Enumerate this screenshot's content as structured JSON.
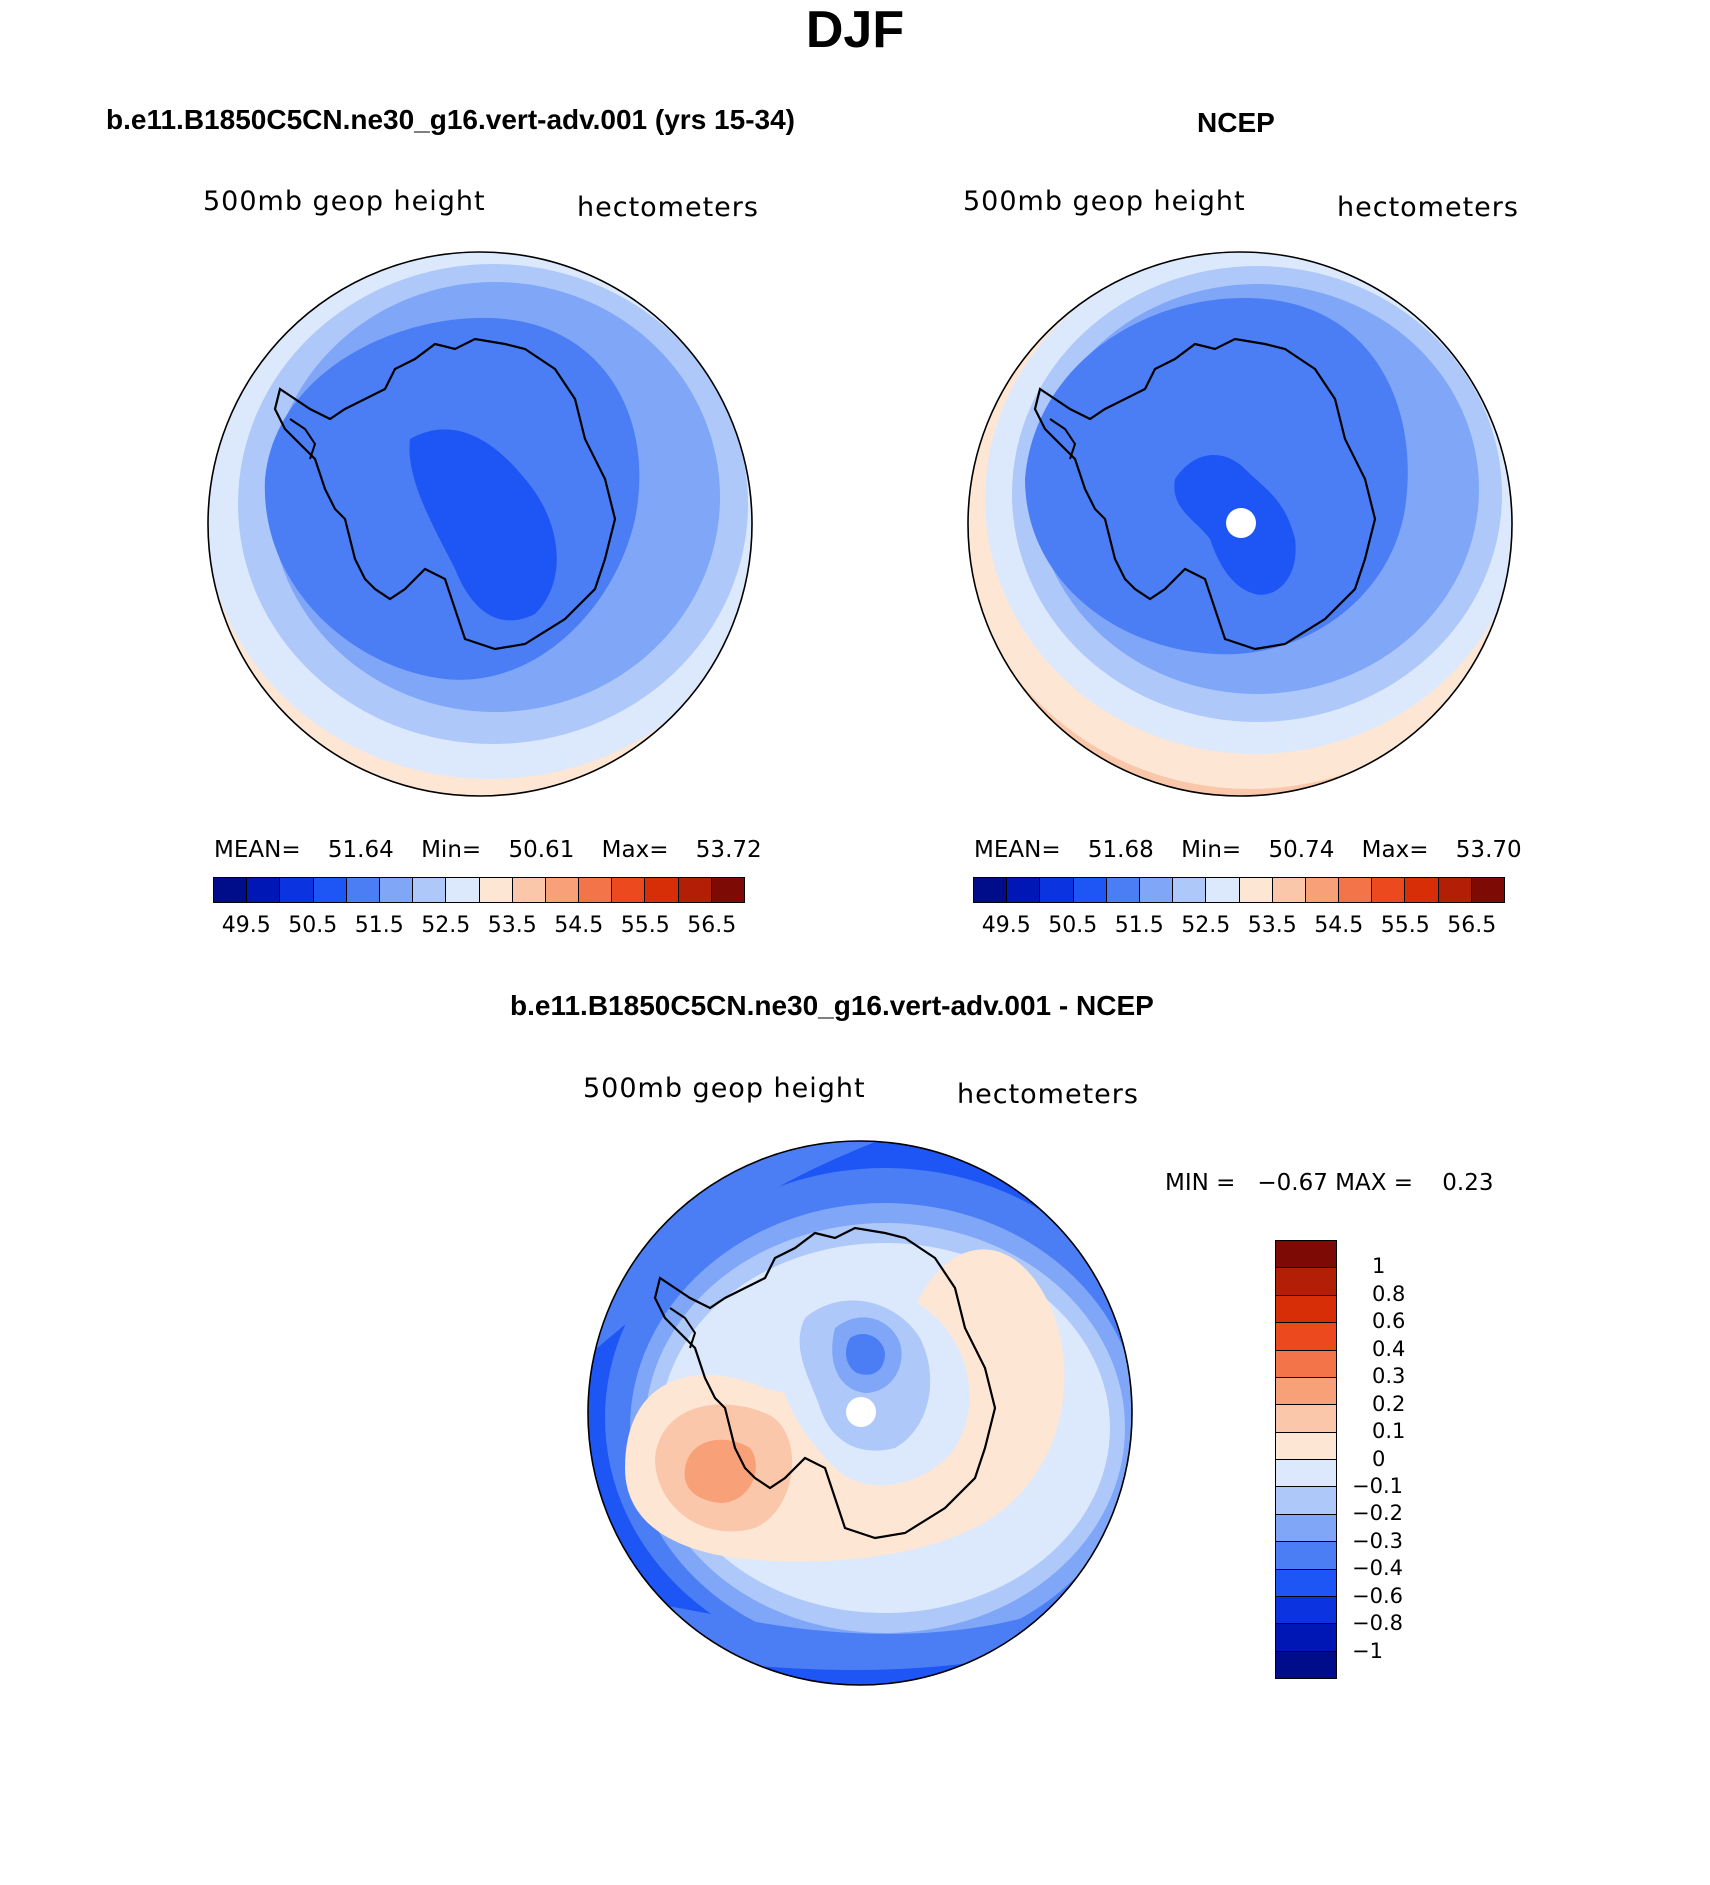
{
  "main_title": "DJF",
  "colors": {
    "abs_scale": [
      "#000d8a",
      "#0016b5",
      "#0c33e0",
      "#1e55f5",
      "#4b7ef5",
      "#7fa6f7",
      "#aec8fa",
      "#dce9fc",
      "#fde6d4",
      "#fbc7aa",
      "#f8a078",
      "#f4744a",
      "#ec4a1e",
      "#d72e08",
      "#b21e06",
      "#7d0a04"
    ],
    "diff_scale": [
      "#7d0a04",
      "#b21e06",
      "#d72e08",
      "#ec4a1e",
      "#f4744a",
      "#f8a078",
      "#fbc7aa",
      "#fde6d4",
      "#dce9fc",
      "#aec8fa",
      "#7fa6f7",
      "#4b7ef5",
      "#1e55f5",
      "#0c33e0",
      "#0016b5",
      "#000d8a"
    ]
  },
  "panels": [
    {
      "title": "b.e11.B1850C5CN.ne30_g16.vert-adv.001 (yrs 15-34)",
      "variable": "500mb geop height",
      "units": "hectometers",
      "stats": {
        "mean_label": "MEAN=",
        "mean": "51.64",
        "min_label": "Min=",
        "min": "50.61",
        "max_label": "Max=",
        "max": "53.72"
      },
      "colorbar_ticks": [
        "49.5",
        "50.5",
        "51.5",
        "52.5",
        "53.5",
        "54.5",
        "55.5",
        "56.5"
      ]
    },
    {
      "title": "NCEP",
      "variable": "500mb geop height",
      "units": "hectometers",
      "stats": {
        "mean_label": "MEAN=",
        "mean": "51.68",
        "min_label": "Min=",
        "min": "50.74",
        "max_label": "Max=",
        "max": "53.70"
      },
      "colorbar_ticks": [
        "49.5",
        "50.5",
        "51.5",
        "52.5",
        "53.5",
        "54.5",
        "55.5",
        "56.5"
      ]
    },
    {
      "title": "b.e11.B1850C5CN.ne30_g16.vert-adv.001 - NCEP",
      "variable": "500mb geop height",
      "units": "hectometers",
      "minmax": "MIN =   −0.67 MAX =    0.23",
      "colorbar_ticks": [
        "1",
        "0.8",
        "0.6",
        "0.4",
        "0.3",
        "0.2",
        "0.1",
        "0",
        "−0.1",
        "−0.2",
        "−0.3",
        "−0.4",
        "−0.6",
        "−0.8",
        "−1"
      ]
    }
  ]
}
